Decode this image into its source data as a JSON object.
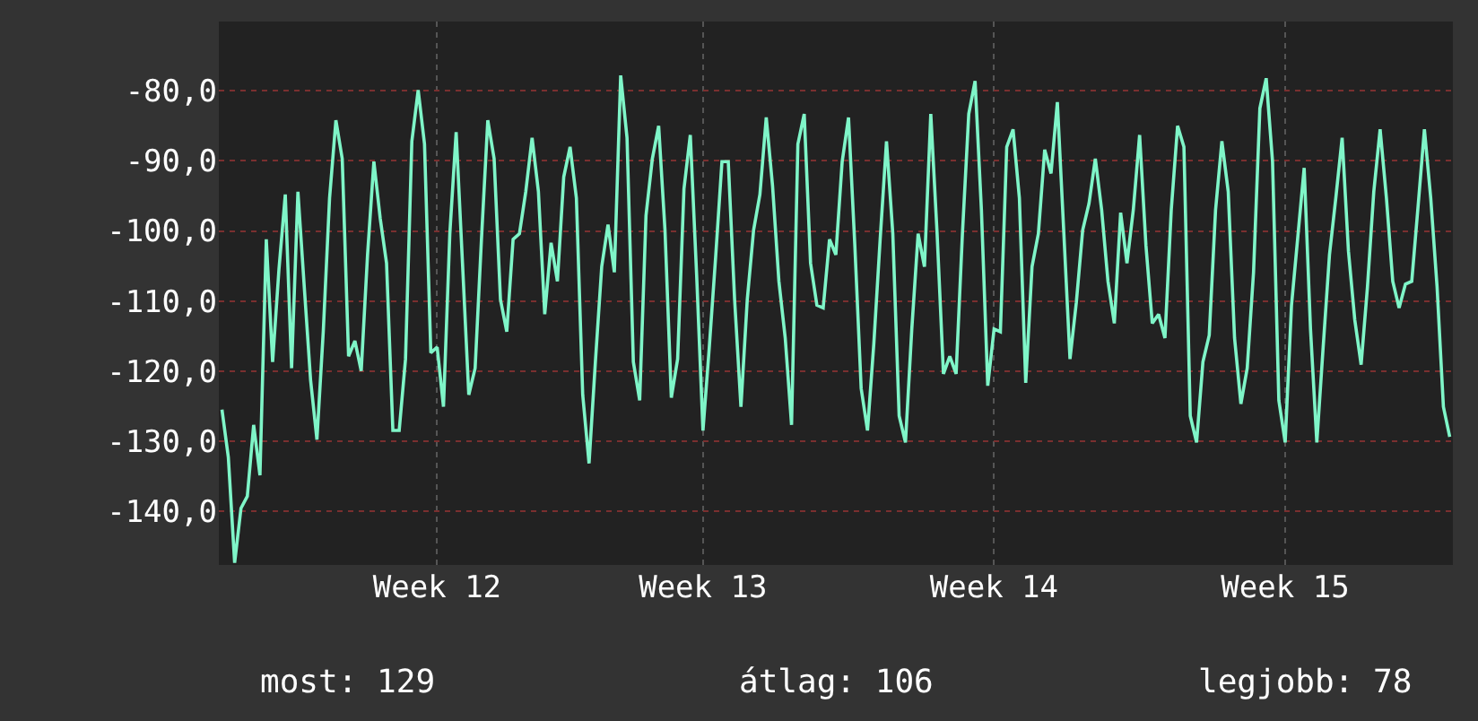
{
  "chart_data": {
    "type": "line",
    "categories": [
      null,
      null,
      null,
      null,
      null,
      null,
      null,
      null,
      null,
      null,
      null,
      null,
      null,
      null,
      null,
      null,
      null,
      null,
      null,
      null,
      null,
      null,
      null,
      null,
      null,
      null,
      null,
      null,
      null,
      null,
      null,
      null,
      null,
      null,
      "Week 12",
      null,
      null,
      null,
      null,
      null,
      null,
      null,
      null,
      null,
      null,
      null,
      null,
      null,
      null,
      null,
      null,
      null,
      null,
      null,
      null,
      null,
      null,
      null,
      null,
      null,
      null,
      null,
      null,
      null,
      null,
      null,
      null,
      null,
      null,
      null,
      null,
      null,
      null,
      null,
      null,
      null,
      "Week 13",
      null,
      null,
      null,
      null,
      null,
      null,
      null,
      null,
      null,
      null,
      null,
      null,
      null,
      null,
      null,
      null,
      null,
      null,
      null,
      null,
      null,
      null,
      null,
      null,
      null,
      null,
      null,
      null,
      null,
      null,
      null,
      null,
      null,
      null,
      null,
      null,
      null,
      null,
      null,
      null,
      null,
      null,
      null,
      null,
      null,
      "Week 14",
      null,
      null,
      null,
      null,
      null,
      null,
      null,
      null,
      null,
      null,
      null,
      null,
      null,
      null,
      null,
      null,
      null,
      null,
      null,
      null,
      null,
      null,
      null,
      null,
      null,
      null,
      null,
      null,
      null,
      null,
      null,
      null,
      null,
      null,
      null,
      null,
      null,
      null,
      null,
      null,
      null,
      null,
      null,
      null,
      null,
      "Week 15",
      null,
      null,
      null,
      null,
      null,
      null,
      null,
      null,
      null,
      null,
      null,
      null,
      null,
      null,
      null,
      null,
      null,
      null,
      null,
      null,
      null,
      null,
      null,
      null,
      null,
      null
    ],
    "ylim": [
      -147.7,
      -70.1
    ],
    "yticks": [
      {
        "value": -140,
        "label": "-140,0"
      },
      {
        "value": -130,
        "label": "-130,0"
      },
      {
        "value": -120,
        "label": "-120,0"
      },
      {
        "value": -110,
        "label": "-110,0"
      },
      {
        "value": -100,
        "label": "-100,0"
      },
      {
        "value": -90,
        "label": "-90,0"
      },
      {
        "value": -80,
        "label": "-80,0"
      }
    ],
    "grid": true,
    "annotations": [
      "most: 129",
      "átlag: 106",
      "legjobb: 78"
    ],
    "series": [
      {
        "color": "#7ff5c8",
        "values": [
          -125.5,
          -132.3,
          -147.4,
          -139.6,
          -137.9,
          -127.7,
          -134.9,
          -101.2,
          -118.7,
          -105.5,
          -94.8,
          -119.6,
          -94.4,
          -108.0,
          -121.3,
          -129.8,
          -114.4,
          -95.3,
          -84.2,
          -89.7,
          -117.9,
          -115.7,
          -120.0,
          -103.4,
          -90.1,
          -98.2,
          -104.6,
          -128.5,
          -128.5,
          -118.3,
          -87.2,
          -79.9,
          -87.6,
          -117.4,
          -116.6,
          -125.1,
          -100.4,
          -85.9,
          -104.6,
          -123.4,
          -119.6,
          -101.2,
          -84.2,
          -89.7,
          -109.8,
          -114.4,
          -101.2,
          -100.4,
          -94.4,
          -86.7,
          -94.4,
          -111.9,
          -101.7,
          -107.2,
          -92.3,
          -88.0,
          -95.3,
          -123.4,
          -133.2,
          -118.7,
          -105.1,
          -99.1,
          -105.9,
          -77.8,
          -86.7,
          -118.7,
          -124.2,
          -97.8,
          -89.7,
          -85.0,
          -99.9,
          -123.8,
          -118.3,
          -94.0,
          -86.3,
          -106.3,
          -128.5,
          -116.6,
          -103.8,
          -90.1,
          -90.1,
          -109.8,
          -125.1,
          -109.8,
          -99.9,
          -94.8,
          -83.8,
          -93.6,
          -107.2,
          -115.3,
          -127.7,
          -87.6,
          -83.3,
          -104.6,
          -110.6,
          -111.0,
          -101.2,
          -103.4,
          -90.1,
          -83.8,
          -102.1,
          -122.5,
          -128.5,
          -116.1,
          -101.2,
          -87.2,
          -100.4,
          -126.4,
          -130.2,
          -114.0,
          -100.4,
          -105.1,
          -83.3,
          -100.4,
          -120.4,
          -117.9,
          -120.4,
          -100.4,
          -83.3,
          -78.6,
          -97.0,
          -122.1,
          -114.0,
          -114.4,
          -88.0,
          -85.5,
          -95.3,
          -121.7,
          -105.1,
          -100.4,
          -88.4,
          -91.8,
          -81.6,
          -99.9,
          -118.3,
          -110.2,
          -99.9,
          -96.1,
          -89.7,
          -97.0,
          -107.2,
          -113.2,
          -97.4,
          -104.6,
          -97.0,
          -86.3,
          -102.1,
          -113.2,
          -111.9,
          -115.3,
          -97.0,
          -85.0,
          -88.0,
          -126.4,
          -130.2,
          -118.7,
          -114.9,
          -97.0,
          -87.2,
          -94.4,
          -115.3,
          -124.7,
          -119.6,
          -105.9,
          -82.5,
          -78.2,
          -90.1,
          -124.2,
          -130.2,
          -110.6,
          -100.8,
          -91.0,
          -114.0,
          -130.2,
          -116.6,
          -103.4,
          -95.3,
          -86.7,
          -102.9,
          -112.7,
          -119.1,
          -108.0,
          -94.4,
          -85.5,
          -95.3,
          -107.2,
          -111.0,
          -107.6,
          -107.2,
          -96.5,
          -85.5,
          -95.3,
          -108.0,
          -125.1,
          -129.4
        ]
      }
    ]
  }
}
